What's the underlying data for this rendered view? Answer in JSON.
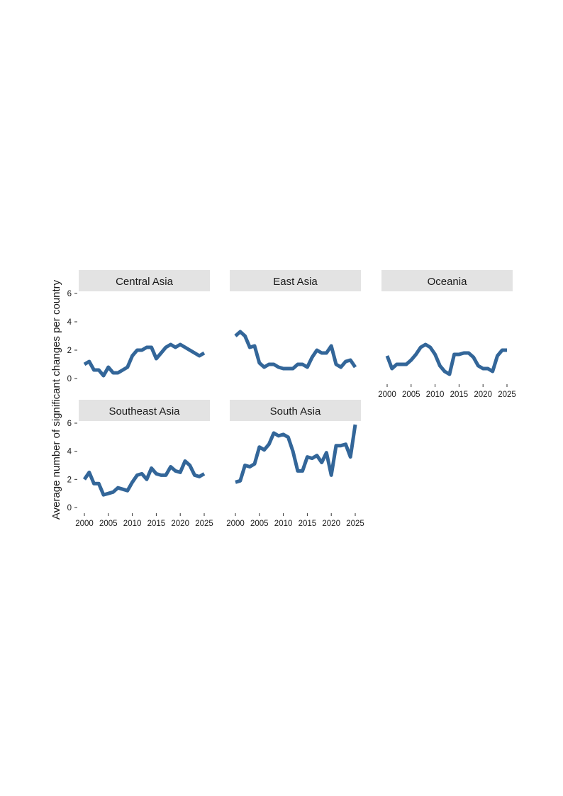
{
  "chart_data": {
    "type": "line",
    "ylabel": "Average number of significant changes per country",
    "xlabel": "",
    "xlim": [
      2000,
      2025
    ],
    "ylim": [
      0,
      6
    ],
    "xticks": [
      2000,
      2005,
      2010,
      2015,
      2020,
      2025
    ],
    "yticks": [
      0,
      2,
      4,
      6
    ],
    "grid": false,
    "line_color": "#336699",
    "strip_color": "#e3e3e3",
    "panels": [
      {
        "name": "Central Asia",
        "x": [
          2000,
          2001,
          2002,
          2003,
          2004,
          2005,
          2006,
          2007,
          2008,
          2009,
          2010,
          2011,
          2012,
          2013,
          2014,
          2015,
          2016,
          2017,
          2018,
          2019,
          2020,
          2021,
          2022,
          2023,
          2024,
          2025
        ],
        "y": [
          1.0,
          1.2,
          0.6,
          0.6,
          0.2,
          0.8,
          0.4,
          0.4,
          0.6,
          0.8,
          1.6,
          2.0,
          2.0,
          2.2,
          2.2,
          1.4,
          1.8,
          2.2,
          2.4,
          2.2,
          2.4,
          2.2,
          2.0,
          1.8,
          1.6,
          1.8
        ]
      },
      {
        "name": "East Asia",
        "x": [
          2000,
          2001,
          2002,
          2003,
          2004,
          2005,
          2006,
          2007,
          2008,
          2009,
          2010,
          2011,
          2012,
          2013,
          2014,
          2015,
          2016,
          2017,
          2018,
          2019,
          2020,
          2021,
          2022,
          2023,
          2024,
          2025
        ],
        "y": [
          3.0,
          3.3,
          3.0,
          2.2,
          2.3,
          1.1,
          0.8,
          1.0,
          1.0,
          0.8,
          0.7,
          0.7,
          0.7,
          1.0,
          1.0,
          0.8,
          1.5,
          2.0,
          1.8,
          1.8,
          2.3,
          1.0,
          0.8,
          1.2,
          1.3,
          0.8
        ]
      },
      {
        "name": "Oceania",
        "x": [
          2000,
          2001,
          2002,
          2003,
          2004,
          2005,
          2006,
          2007,
          2008,
          2009,
          2010,
          2011,
          2012,
          2013,
          2014,
          2015,
          2016,
          2017,
          2018,
          2019,
          2020,
          2021,
          2022,
          2023,
          2024,
          2025
        ],
        "y": [
          1.6,
          0.7,
          1.0,
          1.0,
          1.0,
          1.3,
          1.7,
          2.2,
          2.4,
          2.2,
          1.7,
          0.9,
          0.5,
          0.3,
          1.7,
          1.7,
          1.8,
          1.8,
          1.5,
          0.9,
          0.7,
          0.7,
          0.5,
          1.6,
          2.0,
          2.0
        ]
      },
      {
        "name": "Southeast Asia",
        "x": [
          2000,
          2001,
          2002,
          2003,
          2004,
          2005,
          2006,
          2007,
          2008,
          2009,
          2010,
          2011,
          2012,
          2013,
          2014,
          2015,
          2016,
          2017,
          2018,
          2019,
          2020,
          2021,
          2022,
          2023,
          2024,
          2025
        ],
        "y": [
          2.0,
          2.5,
          1.7,
          1.7,
          0.9,
          1.0,
          1.1,
          1.4,
          1.3,
          1.2,
          1.8,
          2.3,
          2.4,
          2.0,
          2.8,
          2.4,
          2.3,
          2.3,
          2.9,
          2.6,
          2.5,
          3.3,
          3.0,
          2.3,
          2.2,
          2.4
        ]
      },
      {
        "name": "South Asia",
        "x": [
          2000,
          2001,
          2002,
          2003,
          2004,
          2005,
          2006,
          2007,
          2008,
          2009,
          2010,
          2011,
          2012,
          2013,
          2014,
          2015,
          2016,
          2017,
          2018,
          2019,
          2020,
          2021,
          2022,
          2023,
          2024,
          2025
        ],
        "y": [
          1.8,
          1.9,
          3.0,
          2.9,
          3.1,
          4.3,
          4.1,
          4.5,
          5.3,
          5.1,
          5.2,
          5.0,
          4.0,
          2.6,
          2.6,
          3.6,
          3.5,
          3.7,
          3.2,
          3.9,
          2.3,
          4.4,
          4.4,
          4.5,
          3.6,
          5.9
        ]
      }
    ]
  }
}
